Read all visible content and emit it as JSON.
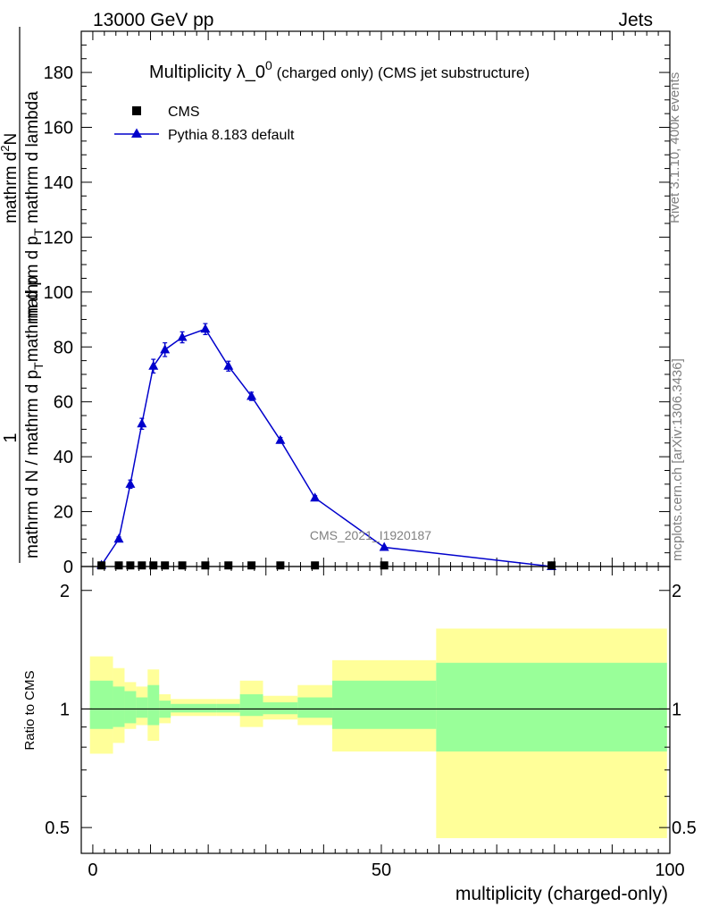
{
  "header": {
    "left": "13000 GeV pp",
    "right": "Jets"
  },
  "main_title": {
    "main": "Multiplicity λ_0",
    "sup": "0",
    "suffix": " (charged only) (CMS jet substructure)"
  },
  "y_label_main": {
    "numerator_line1": "1",
    "denominator_line1": "mathrm d N / mathrm d p",
    "sub_T": "T",
    "denominator_line1b": "mathrm d p",
    "numerator_line2": "mathrm d",
    "numerator_sup": "2",
    "numerator_N": "N",
    "denominator_line2": "mathrm d p",
    "denominator_line2b": " mathrm d lambda"
  },
  "y_label_ratio": "Ratio to CMS",
  "x_label": "multiplicity (charged-only)",
  "side_labels": {
    "rivet": "Rivet 3.1.10,  400k events",
    "mcplots": "mcplots.cern.ch [arXiv:1306.3436]"
  },
  "watermark": "CMS_2021_I1920187",
  "legend": {
    "cms": "CMS",
    "pythia": "Pythia 8.183 default"
  },
  "colors": {
    "pythia": "#0000cc",
    "band_inner": "#99ff99",
    "band_outer": "#ffff99",
    "side_text": "#808080"
  },
  "chart_data": [
    {
      "type": "line",
      "panel": "main",
      "xlim": [
        -2,
        100
      ],
      "ylim": [
        0,
        195
      ],
      "yticks": [
        0,
        20,
        40,
        60,
        80,
        100,
        120,
        140,
        160,
        180
      ],
      "series": [
        {
          "name": "CMS",
          "marker": "square",
          "x": [
            1.5,
            4.5,
            6.5,
            8.5,
            10.5,
            12.5,
            15.5,
            19.5,
            23.5,
            27.5,
            32.5,
            38.5,
            50.5,
            79.5
          ],
          "y": [
            0.4,
            0.4,
            0.4,
            0.4,
            0.4,
            0.4,
            0.4,
            0.4,
            0.4,
            0.4,
            0.4,
            0.4,
            0.4,
            0.4
          ]
        },
        {
          "name": "Pythia 8.183 default",
          "marker": "triangle",
          "x": [
            1.5,
            4.5,
            6.5,
            8.5,
            10.5,
            12.5,
            15.5,
            19.5,
            23.5,
            27.5,
            32.5,
            38.5,
            50.5,
            79.5
          ],
          "y": [
            0.5,
            10,
            30,
            52,
            73,
            79,
            83.5,
            86.5,
            73,
            62,
            46,
            25,
            7,
            0
          ],
          "err": [
            0.3,
            0.8,
            1.5,
            2,
            2.5,
            2.5,
            2,
            2,
            1.8,
            1.5,
            1,
            0.8,
            0.3,
            0
          ]
        }
      ]
    },
    {
      "type": "area",
      "panel": "ratio",
      "xlim": [
        -2,
        100
      ],
      "ylim": [
        0.43,
        2.3
      ],
      "log_y": true,
      "yticks": [
        0.5,
        1,
        2
      ],
      "xticks": [
        0,
        50,
        100
      ],
      "reference_line": 1,
      "bins": [
        {
          "x0": -0.5,
          "x1": 3.5,
          "outer_lo": 0.77,
          "outer_hi": 1.36,
          "inner_lo": 0.89,
          "inner_hi": 1.18
        },
        {
          "x0": 3.5,
          "x1": 5.5,
          "outer_lo": 0.82,
          "outer_hi": 1.27,
          "inner_lo": 0.9,
          "inner_hi": 1.14
        },
        {
          "x0": 5.5,
          "x1": 7.5,
          "outer_lo": 0.89,
          "outer_hi": 1.17,
          "inner_lo": 0.92,
          "inner_hi": 1.11
        },
        {
          "x0": 7.5,
          "x1": 9.5,
          "outer_lo": 0.91,
          "outer_hi": 1.14,
          "inner_lo": 0.95,
          "inner_hi": 1.07
        },
        {
          "x0": 9.5,
          "x1": 11.5,
          "outer_lo": 0.83,
          "outer_hi": 1.26,
          "inner_lo": 0.91,
          "inner_hi": 1.15
        },
        {
          "x0": 11.5,
          "x1": 13.5,
          "outer_lo": 0.92,
          "outer_hi": 1.09,
          "inner_lo": 0.95,
          "inner_hi": 1.05
        },
        {
          "x0": 13.5,
          "x1": 17.5,
          "outer_lo": 0.96,
          "outer_hi": 1.06,
          "inner_lo": 0.98,
          "inner_hi": 1.03
        },
        {
          "x0": 17.5,
          "x1": 21.5,
          "outer_lo": 0.96,
          "outer_hi": 1.06,
          "inner_lo": 0.98,
          "inner_hi": 1.03
        },
        {
          "x0": 21.5,
          "x1": 25.5,
          "outer_lo": 0.96,
          "outer_hi": 1.06,
          "inner_lo": 0.98,
          "inner_hi": 1.03
        },
        {
          "x0": 25.5,
          "x1": 29.5,
          "outer_lo": 0.9,
          "outer_hi": 1.18,
          "inner_lo": 0.96,
          "inner_hi": 1.09
        },
        {
          "x0": 29.5,
          "x1": 35.5,
          "outer_lo": 0.94,
          "outer_hi": 1.08,
          "inner_lo": 0.97,
          "inner_hi": 1.04
        },
        {
          "x0": 35.5,
          "x1": 41.5,
          "outer_lo": 0.91,
          "outer_hi": 1.15,
          "inner_lo": 0.95,
          "inner_hi": 1.07
        },
        {
          "x0": 41.5,
          "x1": 59.5,
          "outer_lo": 0.78,
          "outer_hi": 1.33,
          "inner_lo": 0.89,
          "inner_hi": 1.18
        },
        {
          "x0": 59.5,
          "x1": 99.5,
          "outer_lo": 0.47,
          "outer_hi": 1.6,
          "inner_lo": 0.78,
          "inner_hi": 1.31
        }
      ]
    }
  ]
}
